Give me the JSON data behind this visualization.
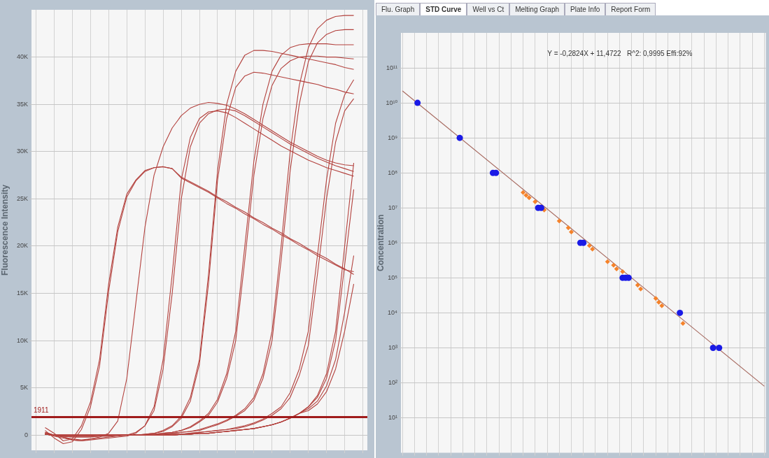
{
  "chart_data": [
    {
      "type": "line",
      "ylabel": "Fluorescence Intensity",
      "grid": true,
      "categories": [
        null,
        null,
        null,
        null,
        null,
        null,
        null,
        null,
        null,
        null,
        null,
        null,
        null,
        null,
        null,
        null,
        null,
        null,
        null,
        null,
        null,
        null,
        null,
        null,
        null,
        null,
        null,
        null,
        null,
        null,
        null,
        null,
        null,
        null,
        null,
        null,
        null
      ],
      "ylim": [
        -1600,
        45000
      ],
      "yticks": [
        0,
        {
          "value": 5000,
          "label": "5K"
        },
        {
          "value": 10000,
          "label": "10K"
        },
        {
          "value": 15000,
          "label": "15K"
        },
        {
          "value": 20000,
          "label": "20K"
        },
        {
          "value": 25000,
          "label": "25K"
        },
        {
          "value": 30000,
          "label": "30K"
        },
        {
          "value": 35000,
          "label": "35K"
        },
        {
          "value": 40000,
          "label": "40K"
        }
      ],
      "ref_lines": [
        {
          "axis": "y",
          "value": 1911,
          "label": "1911",
          "color": "#a01c1c"
        }
      ],
      "series": [
        {
          "color": "#b3413d",
          "values": [
            null,
            800,
            200,
            -600,
            -400,
            1000,
            3500,
            8000,
            16000,
            22000,
            25500,
            27000,
            28000,
            28300,
            28400,
            28200,
            27300,
            26800,
            26300,
            25800,
            25200,
            24700,
            24100,
            23600,
            23000,
            22500,
            21900,
            21400,
            20800,
            20300,
            19700,
            19200,
            18700,
            18100,
            17600,
            17000,
            null
          ]
        },
        {
          "color": "#b3413d",
          "values": [
            null,
            500,
            -300,
            -900,
            -700,
            600,
            3000,
            7300,
            15200,
            21500,
            25200,
            26900,
            27900,
            28300,
            28400,
            28200,
            27200,
            26700,
            26200,
            25700,
            25100,
            24500,
            24000,
            23400,
            22900,
            22300,
            21800,
            21200,
            20700,
            20100,
            19600,
            19000,
            18500,
            18000,
            17500,
            17300,
            null
          ]
        },
        {
          "color": "#b3413d",
          "values": [
            null,
            300,
            0,
            -200,
            -500,
            -600,
            -400,
            -200,
            200,
            1500,
            6000,
            14000,
            22000,
            27500,
            30500,
            32500,
            33800,
            34600,
            35000,
            35200,
            35100,
            34900,
            34500,
            34000,
            33400,
            32800,
            32200,
            31600,
            31000,
            30500,
            30000,
            29500,
            29100,
            28800,
            28600,
            28500,
            null
          ]
        },
        {
          "color": "#b3413d",
          "values": [
            null,
            200,
            -100,
            -300,
            -500,
            -600,
            -500,
            -400,
            -300,
            -200,
            -100,
            200,
            1000,
            3000,
            8000,
            17000,
            27000,
            31500,
            33500,
            34200,
            34300,
            34100,
            33600,
            33000,
            32400,
            31800,
            31200,
            30600,
            30100,
            29600,
            29100,
            28700,
            28300,
            28000,
            27700,
            27400,
            null
          ]
        },
        {
          "color": "#b3413d",
          "values": [
            null,
            300,
            0,
            -200,
            -400,
            -500,
            -400,
            -300,
            -200,
            -100,
            0,
            300,
            1000,
            2600,
            7000,
            15000,
            25000,
            30500,
            33000,
            34000,
            34400,
            34500,
            34300,
            33800,
            33200,
            32600,
            32000,
            31400,
            30800,
            30300,
            29800,
            29300,
            28900,
            28500,
            28200,
            27900,
            null
          ]
        },
        {
          "color": "#b3413d",
          "values": [
            null,
            200,
            0,
            -100,
            -200,
            -200,
            -200,
            -100,
            -100,
            0,
            0,
            0,
            100,
            200,
            500,
            1000,
            2000,
            4000,
            8000,
            17000,
            28000,
            35000,
            38500,
            40200,
            40700,
            40700,
            40600,
            40400,
            40200,
            40000,
            39800,
            39600,
            39400,
            39200,
            38900,
            38700,
            null
          ]
        },
        {
          "color": "#b3413d",
          "values": [
            null,
            200,
            0,
            -100,
            -200,
            -200,
            -200,
            -100,
            -100,
            0,
            0,
            0,
            100,
            200,
            400,
            900,
            1800,
            3600,
            7500,
            16000,
            27000,
            33500,
            36800,
            38000,
            38400,
            38300,
            38100,
            37900,
            37700,
            37500,
            37300,
            37100,
            36800,
            36600,
            36300,
            36100,
            null
          ]
        },
        {
          "color": "#b3413d",
          "values": [
            null,
            100,
            0,
            -100,
            -100,
            -100,
            -100,
            0,
            0,
            0,
            0,
            0,
            0,
            100,
            200,
            300,
            500,
            900,
            1500,
            2300,
            3800,
            6500,
            11000,
            20000,
            29000,
            35000,
            38500,
            40200,
            41000,
            41300,
            41400,
            41400,
            41400,
            41300,
            41300,
            41300,
            null
          ]
        },
        {
          "color": "#b3413d",
          "values": [
            null,
            100,
            0,
            -100,
            -100,
            -100,
            -100,
            0,
            0,
            0,
            0,
            0,
            0,
            100,
            200,
            300,
            500,
            800,
            1400,
            2100,
            3500,
            6000,
            10000,
            18500,
            27500,
            33500,
            37000,
            38800,
            39600,
            40000,
            40100,
            40100,
            40000,
            40000,
            39900,
            39800,
            null
          ]
        },
        {
          "color": "#b3413d",
          "values": [
            null,
            100,
            0,
            0,
            0,
            0,
            0,
            0,
            0,
            0,
            0,
            0,
            0,
            0,
            100,
            200,
            300,
            400,
            600,
            900,
            1200,
            1600,
            2100,
            2800,
            4000,
            6500,
            11000,
            20000,
            30000,
            37000,
            41000,
            43000,
            43900,
            44300,
            44400,
            44400,
            null
          ]
        },
        {
          "color": "#b3413d",
          "values": [
            null,
            100,
            0,
            0,
            0,
            0,
            0,
            0,
            0,
            0,
            0,
            0,
            0,
            0,
            100,
            200,
            300,
            400,
            500,
            800,
            1100,
            1500,
            2000,
            2600,
            3700,
            6000,
            10000,
            18500,
            28000,
            35000,
            39500,
            41500,
            42400,
            42800,
            42900,
            42900,
            null
          ]
        },
        {
          "color": "#b3413d",
          "values": [
            null,
            100,
            0,
            0,
            0,
            0,
            0,
            0,
            0,
            0,
            0,
            0,
            0,
            0,
            0,
            100,
            100,
            200,
            300,
            400,
            500,
            600,
            800,
            1000,
            1300,
            1700,
            2300,
            3000,
            4500,
            7000,
            11000,
            19000,
            27000,
            33000,
            36000,
            37600,
            null
          ]
        },
        {
          "color": "#b3413d",
          "values": [
            null,
            100,
            0,
            0,
            0,
            0,
            0,
            0,
            0,
            0,
            0,
            0,
            0,
            0,
            0,
            100,
            100,
            200,
            300,
            400,
            500,
            600,
            700,
            900,
            1200,
            1600,
            2100,
            2800,
            4000,
            6300,
            9500,
            17000,
            25000,
            31000,
            34300,
            35600,
            null
          ]
        },
        {
          "color": "#b3413d",
          "values": [
            null,
            100,
            0,
            0,
            0,
            0,
            0,
            0,
            0,
            0,
            0,
            0,
            0,
            0,
            0,
            0,
            100,
            100,
            200,
            200,
            300,
            400,
            500,
            600,
            700,
            900,
            1100,
            1400,
            1800,
            2300,
            3000,
            4200,
            6500,
            11000,
            20000,
            28800,
            null
          ]
        },
        {
          "color": "#b3413d",
          "values": [
            null,
            100,
            0,
            0,
            0,
            0,
            0,
            0,
            0,
            0,
            0,
            0,
            0,
            0,
            0,
            0,
            100,
            100,
            200,
            200,
            300,
            400,
            500,
            600,
            700,
            900,
            1100,
            1400,
            1800,
            2300,
            3000,
            4000,
            6000,
            10000,
            18000,
            26000,
            null
          ]
        },
        {
          "color": "#b3413d",
          "values": [
            null,
            100,
            0,
            0,
            0,
            0,
            0,
            0,
            0,
            0,
            0,
            0,
            0,
            0,
            0,
            0,
            100,
            100,
            200,
            200,
            300,
            400,
            500,
            600,
            700,
            900,
            1100,
            1400,
            1800,
            2300,
            2800,
            3600,
            5200,
            8000,
            13000,
            19000,
            null
          ]
        },
        {
          "color": "#b3413d",
          "values": [
            null,
            100,
            0,
            0,
            0,
            0,
            0,
            0,
            0,
            0,
            0,
            0,
            0,
            0,
            0,
            0,
            100,
            100,
            200,
            200,
            300,
            400,
            500,
            600,
            700,
            900,
            1100,
            1400,
            1800,
            2300,
            2600,
            3300,
            4600,
            7000,
            11000,
            16000,
            null
          ]
        }
      ]
    },
    {
      "type": "other",
      "annotations": [
        "Flu. Graph",
        "STD Curve",
        "Well vs Ct",
        "Melting Graph",
        "Plate Info",
        "Report Form"
      ]
    },
    {
      "type": "scatter",
      "ylabel": "Concentration",
      "grid": true,
      "log": true,
      "annotations": [
        "Y = -0,2824X + 11,4722   R^2: 0,9995 Effi:92%"
      ],
      "categories": [
        null,
        null,
        null,
        null,
        null,
        null,
        null,
        null,
        null,
        null,
        null,
        null,
        null,
        null,
        null,
        null,
        null,
        null,
        null,
        null,
        null,
        null,
        null,
        null,
        null,
        null,
        null,
        null,
        null,
        null,
        null,
        null,
        null,
        null,
        null,
        null,
        null,
        null,
        null,
        null,
        null,
        null,
        null,
        null,
        null,
        null,
        null,
        null,
        null,
        null,
        null,
        null,
        null,
        null,
        null,
        null,
        null,
        null,
        null,
        null,
        null,
        null,
        null,
        null,
        null,
        null,
        null,
        null,
        null,
        null,
        null,
        null,
        null,
        null,
        null,
        null,
        null,
        null,
        null,
        null,
        null,
        null,
        null,
        null,
        null,
        null,
        null,
        null,
        null,
        null,
        null,
        null,
        null,
        null,
        null,
        null,
        null,
        null,
        null,
        null,
        null,
        null,
        null,
        null,
        null,
        null,
        null,
        null,
        null,
        null,
        null,
        null,
        null,
        null,
        null,
        null,
        null,
        null,
        null,
        null,
        null
      ],
      "ylim": [
        1,
        1000000000000.0
      ],
      "yticks": [
        {
          "value": 10,
          "label": "10¹"
        },
        {
          "value": 100,
          "label": "10²"
        },
        {
          "value": 1000,
          "label": "10³"
        },
        {
          "value": 10000,
          "label": "10⁴"
        },
        {
          "value": 100000,
          "label": "10⁵"
        },
        {
          "value": 1000000,
          "label": "10⁶"
        },
        {
          "value": 10000000,
          "label": "10⁷"
        },
        {
          "value": 100000000,
          "label": "10⁸"
        },
        {
          "value": 1000000000,
          "label": "10⁹"
        },
        {
          "value": 10000000000,
          "label": "10¹⁰"
        },
        {
          "value": 100000000000,
          "label": "10¹¹"
        }
      ],
      "series": [
        {
          "marker": "circle",
          "color": "#1a1ae6",
          "values": [
            null,
            null,
            null,
            null,
            null,
            10000000000.0,
            null,
            null,
            null,
            null,
            null,
            null,
            null,
            null,
            null,
            null,
            null,
            null,
            null,
            1000000000.0,
            null,
            null,
            null,
            null,
            null,
            null,
            null,
            null,
            null,
            null,
            100000000.0,
            100000000.0,
            null,
            null,
            null,
            null,
            null,
            null,
            null,
            null,
            null,
            null,
            null,
            null,
            null,
            10000000.0,
            10000000.0,
            null,
            null,
            null,
            null,
            null,
            null,
            null,
            null,
            null,
            null,
            null,
            null,
            1000000.0,
            1000000.0,
            null,
            null,
            null,
            null,
            null,
            null,
            null,
            null,
            null,
            null,
            null,
            null,
            100000.0,
            100000.0,
            100000.0,
            null,
            null,
            null,
            null,
            null,
            null,
            null,
            null,
            null,
            null,
            null,
            null,
            null,
            null,
            null,
            null,
            10000.0,
            null,
            null,
            null,
            null,
            null,
            null,
            null,
            null,
            null,
            null,
            1000,
            null,
            1000,
            null,
            null,
            null,
            null,
            null,
            null,
            null,
            null,
            null,
            null,
            null,
            null,
            null,
            null,
            null
          ]
        },
        {
          "marker": "diamond",
          "color": "#f5822a",
          "values": [
            null,
            null,
            null,
            null,
            null,
            null,
            null,
            null,
            null,
            null,
            null,
            null,
            null,
            null,
            null,
            null,
            null,
            null,
            null,
            null,
            null,
            null,
            null,
            null,
            null,
            null,
            null,
            null,
            null,
            null,
            null,
            null,
            null,
            null,
            null,
            null,
            null,
            null,
            null,
            null,
            27500000.0,
            23000000.0,
            19500000.0,
            null,
            15000000.0,
            null,
            null,
            8700000.0,
            null,
            null,
            null,
            null,
            4200000.0,
            null,
            null,
            2700000.0,
            2050000.0,
            null,
            null,
            null,
            null,
            null,
            830000.0,
            660000.0,
            null,
            null,
            null,
            null,
            290000.0,
            null,
            230000.0,
            180000.0,
            null,
            150000.0,
            null,
            null,
            null,
            null,
            62000.0,
            48000.0,
            null,
            null,
            null,
            null,
            26000.0,
            20000.0,
            16000.0,
            null,
            null,
            null,
            null,
            null,
            null,
            5000,
            null,
            null,
            null,
            null,
            null,
            null,
            null,
            null,
            null,
            null,
            null,
            null,
            null,
            null,
            null,
            null,
            null,
            null,
            null,
            null,
            null,
            null,
            null,
            null,
            null,
            null,
            null
          ]
        },
        {
          "type": "line",
          "marker": "none",
          "color": "#a5675d",
          "values": [
            22000000000.0,
            null,
            null,
            null,
            null,
            null,
            null,
            null,
            null,
            null,
            null,
            null,
            null,
            null,
            null,
            null,
            null,
            null,
            null,
            null,
            null,
            null,
            null,
            null,
            null,
            null,
            null,
            null,
            null,
            null,
            null,
            null,
            null,
            null,
            null,
            null,
            null,
            null,
            null,
            null,
            null,
            null,
            null,
            null,
            null,
            null,
            null,
            null,
            null,
            null,
            null,
            null,
            null,
            null,
            null,
            null,
            null,
            null,
            null,
            null,
            null,
            null,
            null,
            null,
            null,
            null,
            null,
            null,
            null,
            null,
            null,
            null,
            null,
            null,
            null,
            null,
            null,
            null,
            null,
            null,
            null,
            null,
            null,
            null,
            null,
            null,
            null,
            null,
            null,
            null,
            null,
            null,
            null,
            null,
            null,
            null,
            null,
            null,
            null,
            null,
            null,
            null,
            null,
            null,
            null,
            null,
            null,
            null,
            null,
            null,
            null,
            null,
            null,
            null,
            null,
            null,
            null,
            null,
            null,
            null,
            80
          ]
        }
      ]
    }
  ]
}
